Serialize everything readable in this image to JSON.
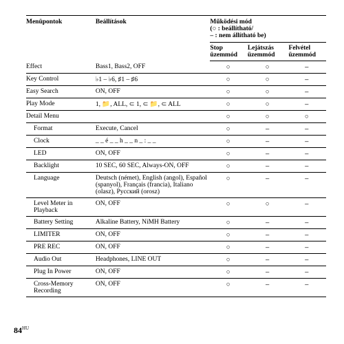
{
  "headers": {
    "col1": "Menüpontok",
    "col2": "Beállítások",
    "mode_title": "Működési mód",
    "mode_legend1": "(○ : beállítható/",
    "mode_legend2": "– : nem állítható be)",
    "stop1": "Stop",
    "stop2": "üzemmód",
    "play1": "Lejátszás",
    "play2": "üzemmód",
    "rec1": "Felvétel",
    "rec2": "üzemmód"
  },
  "rows": [
    {
      "name": "Effect",
      "setting": "Bass1, Bass2, OFF",
      "stop": "○",
      "play": "○",
      "rec": "–",
      "indent": false
    },
    {
      "name": "Key Control",
      "setting": "♭1 – ♭6, ♯1 – ♯6",
      "stop": "○",
      "play": "○",
      "rec": "–",
      "indent": false
    },
    {
      "name": "Easy Search",
      "setting": "ON, OFF",
      "stop": "○",
      "play": "○",
      "rec": "–",
      "indent": false
    },
    {
      "name": "Play Mode",
      "setting": "1, 📁, ALL, ⊂ 1, ⊂ 📁, ⊂ ALL",
      "stop": "○",
      "play": "○",
      "rec": "–",
      "indent": false
    },
    {
      "name": "Detail Menu",
      "setting": "",
      "stop": "○",
      "play": "○",
      "rec": "○",
      "indent": false
    },
    {
      "name": "Format",
      "setting": "Execute,  Cancel",
      "stop": "○",
      "play": "–",
      "rec": "–",
      "indent": true
    },
    {
      "name": "Clock",
      "setting": "_ _ é _ _ h _ _ n _ : _ _",
      "stop": "○",
      "play": "–",
      "rec": "–",
      "indent": true
    },
    {
      "name": "LED",
      "setting": "ON, OFF",
      "stop": "○",
      "play": "–",
      "rec": "–",
      "indent": true
    },
    {
      "name": "Backlight",
      "setting": "10 SEC, 60 SEC, Always-ON, OFF",
      "stop": "○",
      "play": "–",
      "rec": "–",
      "indent": true
    },
    {
      "name": "Language",
      "setting": "Deutsch (német), English (angol), Español (spanyol), Français (francia), Italiano (olasz), Pусский (orosz)",
      "stop": "○",
      "play": "–",
      "rec": "–",
      "indent": true
    },
    {
      "name": "Level Meter in Playback",
      "setting": "ON, OFF",
      "stop": "○",
      "play": "○",
      "rec": "–",
      "indent": true
    },
    {
      "name": "Battery Setting",
      "setting": "Alkaline Battery, NiMH Battery",
      "stop": "○",
      "play": "–",
      "rec": "–",
      "indent": true
    },
    {
      "name": "LIMITER",
      "setting": "ON, OFF",
      "stop": "○",
      "play": "–",
      "rec": "–",
      "indent": true
    },
    {
      "name": "PRE REC",
      "setting": "ON, OFF",
      "stop": "○",
      "play": "–",
      "rec": "–",
      "indent": true
    },
    {
      "name": "Audio Out",
      "setting": "Headphones, LINE OUT",
      "stop": "○",
      "play": "–",
      "rec": "–",
      "indent": true
    },
    {
      "name": "Plug In Power",
      "setting": "ON, OFF",
      "stop": "○",
      "play": "–",
      "rec": "–",
      "indent": true
    },
    {
      "name": "Cross-Memory Recording",
      "setting": "ON, OFF",
      "stop": "○",
      "play": "–",
      "rec": "–",
      "indent": true
    }
  ],
  "page": {
    "num": "84",
    "sup": "HU"
  }
}
